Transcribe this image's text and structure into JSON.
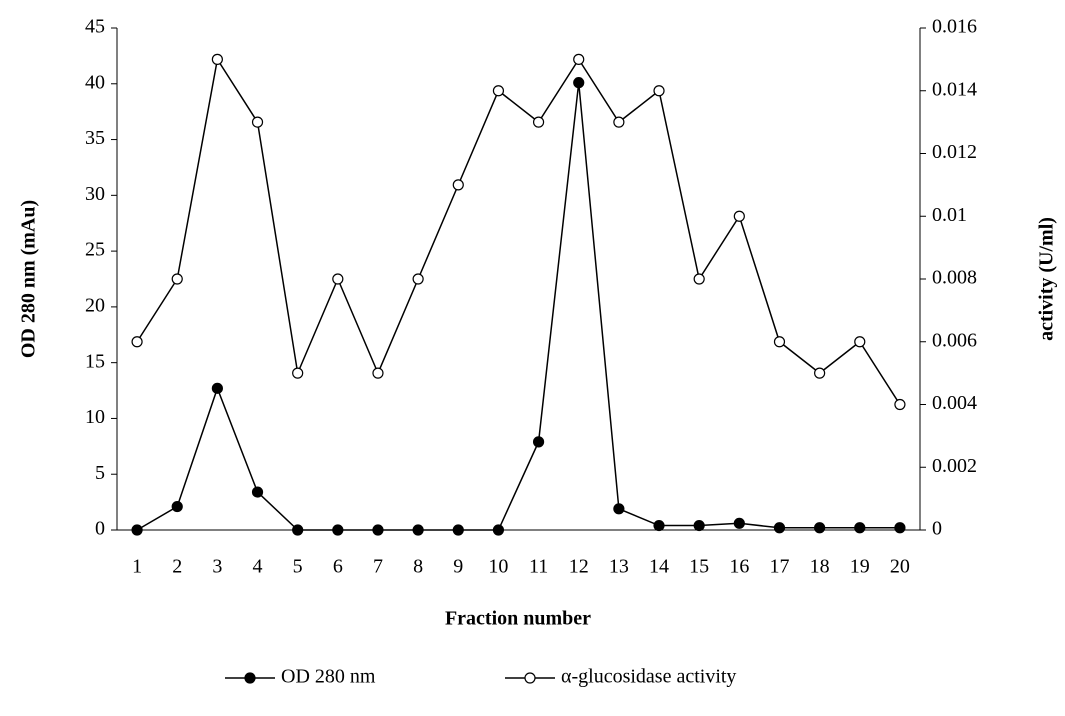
{
  "chart_data": {
    "type": "line",
    "categories": [
      "1",
      "2",
      "3",
      "4",
      "5",
      "6",
      "7",
      "8",
      "9",
      "10",
      "11",
      "12",
      "13",
      "14",
      "15",
      "16",
      "17",
      "18",
      "19",
      "20"
    ],
    "x_label": "Fraction number",
    "y_label": "OD 280 nm (mAu)",
    "y2_label": "activity (U/ml)",
    "ylim": [
      0,
      45
    ],
    "yticks": [
      0,
      5,
      10,
      15,
      20,
      25,
      30,
      35,
      40,
      45
    ],
    "y2lim": [
      0,
      0.016
    ],
    "y2ticks": [
      0,
      0.002,
      0.004,
      0.006,
      0.008,
      0.01,
      0.012,
      0.014,
      0.016
    ],
    "grid": false,
    "legend": "bottom",
    "series": [
      {
        "name": "OD 280 nm",
        "color": "#000000",
        "marker": "filled",
        "values": [
          0,
          2.1,
          12.7,
          3.4,
          0,
          0,
          0,
          0,
          0,
          0,
          7.9,
          40.1,
          1.9,
          0.4,
          0.4,
          0.6,
          0.2,
          0.2,
          0.2,
          0.2
        ]
      },
      {
        "name": "α-glucosidase activity",
        "color": "#000000",
        "marker": "open",
        "axis": "y2",
        "values": [
          0.006,
          0.008,
          0.015,
          0.013,
          0.005,
          0.008,
          0.005,
          0.008,
          0.011,
          0.014,
          0.013,
          0.015,
          0.013,
          0.014,
          0.008,
          0.01,
          0.006,
          0.005,
          0.006,
          0.004
        ]
      }
    ]
  }
}
